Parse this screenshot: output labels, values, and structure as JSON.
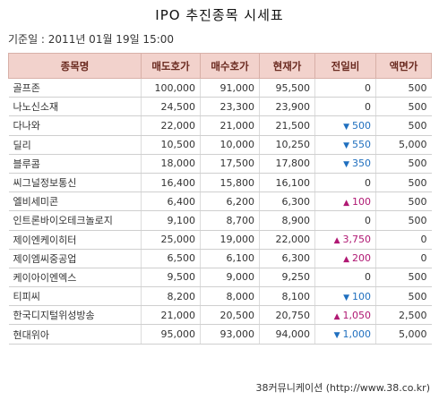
{
  "title": "IPO 추진종목 시세표",
  "date_label": "기준일 : 2011년 01월 19일 15:00",
  "headers": [
    "종목명",
    "매도호가",
    "매수호가",
    "현재가",
    "전일비",
    "액면가"
  ],
  "rows": [
    {
      "name": "골프존",
      "ask": "100,000",
      "bid": "91,000",
      "price": "95,500",
      "dir": "",
      "change": "0",
      "face": "500"
    },
    {
      "name": "나노신소재",
      "ask": "24,500",
      "bid": "23,300",
      "price": "23,900",
      "dir": "",
      "change": "0",
      "face": "500"
    },
    {
      "name": "다나와",
      "ask": "22,000",
      "bid": "21,000",
      "price": "21,500",
      "dir": "down",
      "change": "500",
      "face": "500"
    },
    {
      "name": "딜리",
      "ask": "10,500",
      "bid": "10,000",
      "price": "10,250",
      "dir": "down",
      "change": "550",
      "face": "5,000"
    },
    {
      "name": "블루콤",
      "ask": "18,000",
      "bid": "17,500",
      "price": "17,800",
      "dir": "down",
      "change": "350",
      "face": "500"
    },
    {
      "name": "씨그널정보통신",
      "ask": "16,400",
      "bid": "15,800",
      "price": "16,100",
      "dir": "",
      "change": "0",
      "face": "500"
    },
    {
      "name": "엘비세미콘",
      "ask": "6,400",
      "bid": "6,200",
      "price": "6,300",
      "dir": "up",
      "change": "100",
      "face": "500"
    },
    {
      "name": "인트론바이오테크놀로지",
      "ask": "9,100",
      "bid": "8,700",
      "price": "8,900",
      "dir": "",
      "change": "0",
      "face": "500"
    },
    {
      "name": "제이엔케이히터",
      "ask": "25,000",
      "bid": "19,000",
      "price": "22,000",
      "dir": "up",
      "change": "3,750",
      "face": "0"
    },
    {
      "name": "제이엠씨중공업",
      "ask": "6,500",
      "bid": "6,100",
      "price": "6,300",
      "dir": "up",
      "change": "200",
      "face": "0"
    },
    {
      "name": "케이아이엔엑스",
      "ask": "9,500",
      "bid": "9,000",
      "price": "9,250",
      "dir": "",
      "change": "0",
      "face": "500"
    },
    {
      "name": "티피씨",
      "ask": "8,200",
      "bid": "8,000",
      "price": "8,100",
      "dir": "down",
      "change": "100",
      "face": "500"
    },
    {
      "name": "한국디지털위성방송",
      "ask": "21,000",
      "bid": "20,500",
      "price": "20,750",
      "dir": "up",
      "change": "1,050",
      "face": "2,500"
    },
    {
      "name": "현대위아",
      "ask": "95,000",
      "bid": "93,000",
      "price": "94,000",
      "dir": "down",
      "change": "1,000",
      "face": "5,000"
    }
  ],
  "colors": {
    "header_bg": "#f2d2cc",
    "up": "#b01873",
    "down": "#1f6fbf"
  },
  "icons": {
    "up": "triangle-up-icon",
    "down": "triangle-down-icon"
  },
  "footer": "38커뮤니케이션 (http://www.38.co.kr)"
}
